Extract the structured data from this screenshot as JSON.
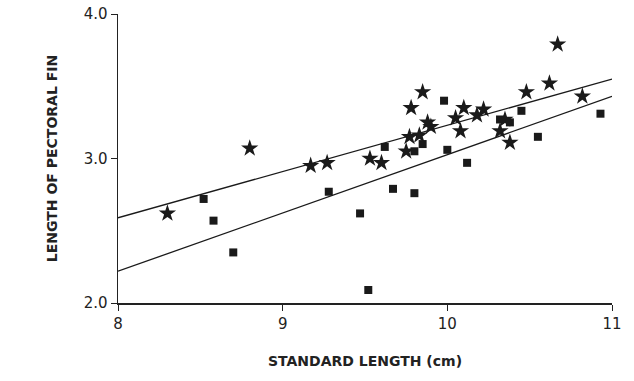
{
  "chart_data": {
    "type": "scatter",
    "x_label": "STANDARD LENGTH (cm)",
    "y_label": "LENGTH OF PECTORAL FIN",
    "xlim": [
      8,
      11
    ],
    "ylim": [
      2,
      4
    ],
    "xticks": [
      8,
      9,
      10,
      11
    ],
    "yticks": [
      {
        "value": 2,
        "label": "2.0"
      },
      {
        "value": 3,
        "label": "3.0"
      },
      {
        "value": 4,
        "label": "4.0"
      }
    ],
    "grid": false,
    "series": [
      {
        "type": "scatter",
        "marker": "star",
        "color": "#1a1a1a",
        "x": [
          8.3,
          8.8,
          9.17,
          9.27,
          9.53,
          9.6,
          9.75,
          9.77,
          9.78,
          9.83,
          9.85,
          9.88,
          9.9,
          10.05,
          10.08,
          10.1,
          10.18,
          10.22,
          10.32,
          10.35,
          10.38,
          10.48,
          10.62,
          10.67,
          10.82
        ],
        "values": [
          2.62,
          3.07,
          2.95,
          2.97,
          3.0,
          2.97,
          3.05,
          3.15,
          3.35,
          3.16,
          3.46,
          3.25,
          3.22,
          3.28,
          3.19,
          3.35,
          3.3,
          3.34,
          3.19,
          3.27,
          3.11,
          3.46,
          3.52,
          3.79,
          3.43
        ]
      },
      {
        "type": "scatter",
        "marker": "square",
        "color": "#1a1a1a",
        "x": [
          8.52,
          8.58,
          8.7,
          9.28,
          9.47,
          9.52,
          9.62,
          9.67,
          9.8,
          9.8,
          9.85,
          9.98,
          10.0,
          10.12,
          10.32,
          10.38,
          10.45,
          10.55,
          10.93
        ],
        "values": [
          2.72,
          2.57,
          2.35,
          2.77,
          2.62,
          2.09,
          3.08,
          2.79,
          3.05,
          2.76,
          3.1,
          3.4,
          3.06,
          2.97,
          3.27,
          3.25,
          3.33,
          3.15,
          3.31
        ]
      },
      {
        "type": "line",
        "line_style": "solid",
        "color": "#1a1a1a",
        "x": [
          8,
          11
        ],
        "values": [
          2.59,
          3.55
        ]
      },
      {
        "type": "line",
        "line_style": "solid",
        "color": "#1a1a1a",
        "x": [
          8,
          11
        ],
        "values": [
          2.22,
          3.43
        ]
      }
    ]
  }
}
